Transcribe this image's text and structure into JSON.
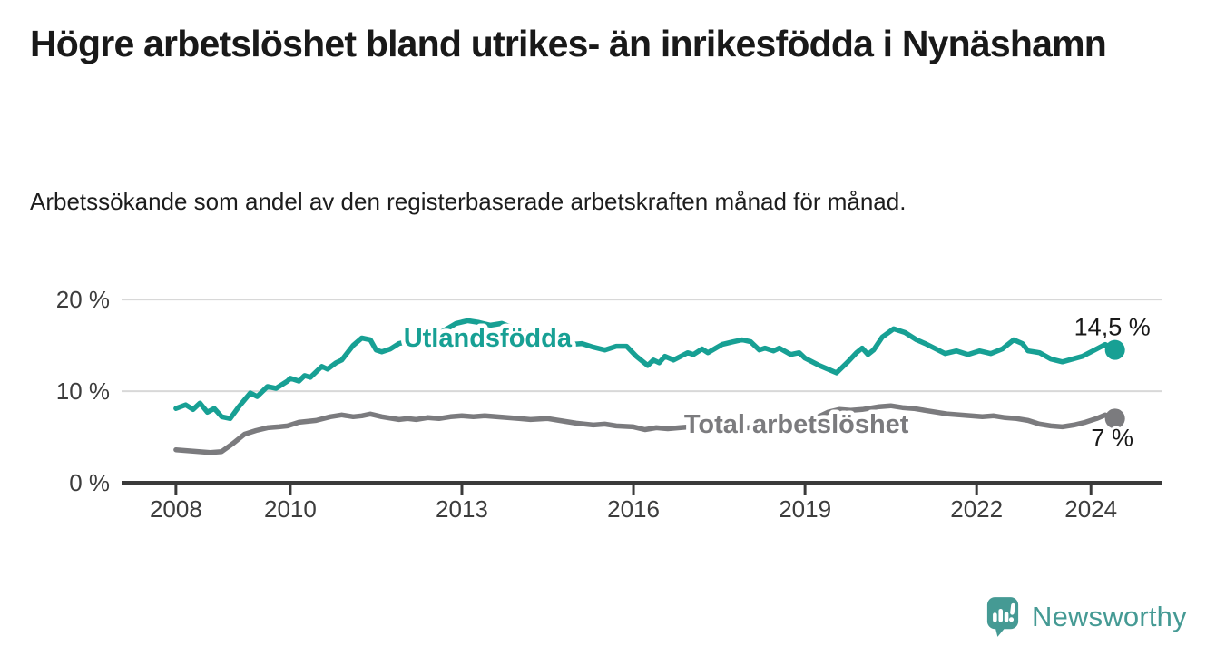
{
  "header": {
    "title": "Högre arbetslöshet bland utrikes- än inrikesfödda i Nynäshamn",
    "subtitle": "Arbetssökande som andel av den registerbaserade arbetskraften månad för månad."
  },
  "branding": {
    "name": "Newsworthy",
    "logo_color": "#459a94",
    "logo_icon": "bar-chart-speech-bubble"
  },
  "chart_data": {
    "type": "line",
    "unit": "%",
    "grid": "horizontal-only",
    "legend_position": "inline-labels",
    "xlim": [
      2007.05,
      2025.25
    ],
    "ylim": [
      0,
      21.5
    ],
    "x_ticks": [
      {
        "year": 2008,
        "label": "2008"
      },
      {
        "year": 2010,
        "label": "2010"
      },
      {
        "year": 2013,
        "label": "2013"
      },
      {
        "year": 2016,
        "label": "2016"
      },
      {
        "year": 2019,
        "label": "2019"
      },
      {
        "year": 2022,
        "label": "2022"
      },
      {
        "year": 2024,
        "label": "2024"
      }
    ],
    "y_ticks": [
      {
        "value": 0,
        "label": "0 %"
      },
      {
        "value": 10,
        "label": "10 %"
      },
      {
        "value": 20,
        "label": "20 %"
      }
    ],
    "series": [
      {
        "name": "Utlandsfödda",
        "color": "#17a094",
        "end_label": "14,5 %",
        "end_value": 14.5,
        "end_label_position": "above",
        "label_anchor": {
          "year": 2013.45,
          "value": 15.85
        },
        "points": [
          [
            2008.0,
            8.1
          ],
          [
            2008.17,
            8.5
          ],
          [
            2008.3,
            8.0
          ],
          [
            2008.42,
            8.7
          ],
          [
            2008.55,
            7.7
          ],
          [
            2008.67,
            8.1
          ],
          [
            2008.8,
            7.2
          ],
          [
            2008.95,
            7.0
          ],
          [
            2009.1,
            8.3
          ],
          [
            2009.3,
            9.8
          ],
          [
            2009.42,
            9.4
          ],
          [
            2009.6,
            10.5
          ],
          [
            2009.75,
            10.3
          ],
          [
            2009.95,
            11.1
          ],
          [
            2010.0,
            11.4
          ],
          [
            2010.15,
            11.1
          ],
          [
            2010.25,
            11.7
          ],
          [
            2010.35,
            11.5
          ],
          [
            2010.55,
            12.7
          ],
          [
            2010.65,
            12.4
          ],
          [
            2010.8,
            13.1
          ],
          [
            2010.9,
            13.4
          ],
          [
            2011.1,
            15.0
          ],
          [
            2011.25,
            15.8
          ],
          [
            2011.4,
            15.6
          ],
          [
            2011.5,
            14.5
          ],
          [
            2011.6,
            14.3
          ],
          [
            2011.75,
            14.6
          ],
          [
            2011.9,
            15.2
          ],
          [
            2012.05,
            15.4
          ],
          [
            2012.2,
            15.2
          ],
          [
            2012.4,
            15.6
          ],
          [
            2012.6,
            16.3
          ],
          [
            2012.9,
            17.4
          ],
          [
            2013.1,
            17.7
          ],
          [
            2013.3,
            17.5
          ],
          [
            2013.5,
            17.2
          ],
          [
            2013.7,
            17.4
          ],
          [
            2013.9,
            16.9
          ],
          [
            2014.1,
            16.4
          ],
          [
            2014.3,
            16.0
          ],
          [
            2014.6,
            15.5
          ],
          [
            2014.9,
            15.1
          ],
          [
            2015.1,
            15.2
          ],
          [
            2015.3,
            14.8
          ],
          [
            2015.5,
            14.5
          ],
          [
            2015.7,
            14.9
          ],
          [
            2015.88,
            14.9
          ],
          [
            2016.05,
            13.8
          ],
          [
            2016.25,
            12.8
          ],
          [
            2016.35,
            13.4
          ],
          [
            2016.45,
            13.1
          ],
          [
            2016.55,
            13.8
          ],
          [
            2016.7,
            13.4
          ],
          [
            2016.95,
            14.2
          ],
          [
            2017.05,
            14.0
          ],
          [
            2017.2,
            14.6
          ],
          [
            2017.3,
            14.2
          ],
          [
            2017.55,
            15.1
          ],
          [
            2017.75,
            15.4
          ],
          [
            2017.9,
            15.6
          ],
          [
            2018.05,
            15.4
          ],
          [
            2018.2,
            14.5
          ],
          [
            2018.3,
            14.7
          ],
          [
            2018.45,
            14.4
          ],
          [
            2018.55,
            14.7
          ],
          [
            2018.75,
            14.0
          ],
          [
            2018.9,
            14.2
          ],
          [
            2019.0,
            13.6
          ],
          [
            2019.25,
            12.8
          ],
          [
            2019.4,
            12.4
          ],
          [
            2019.55,
            12.0
          ],
          [
            2019.65,
            12.6
          ],
          [
            2019.75,
            13.2
          ],
          [
            2019.9,
            14.2
          ],
          [
            2020.0,
            14.7
          ],
          [
            2020.1,
            14.0
          ],
          [
            2020.2,
            14.5
          ],
          [
            2020.35,
            15.9
          ],
          [
            2020.55,
            16.8
          ],
          [
            2020.75,
            16.4
          ],
          [
            2020.95,
            15.6
          ],
          [
            2021.1,
            15.2
          ],
          [
            2021.45,
            14.1
          ],
          [
            2021.65,
            14.4
          ],
          [
            2021.85,
            14.0
          ],
          [
            2022.05,
            14.4
          ],
          [
            2022.25,
            14.1
          ],
          [
            2022.45,
            14.6
          ],
          [
            2022.65,
            15.6
          ],
          [
            2022.8,
            15.2
          ],
          [
            2022.9,
            14.4
          ],
          [
            2023.1,
            14.2
          ],
          [
            2023.3,
            13.5
          ],
          [
            2023.5,
            13.2
          ],
          [
            2023.85,
            13.8
          ],
          [
            2024.1,
            14.6
          ],
          [
            2024.25,
            15.1
          ],
          [
            2024.42,
            14.5
          ]
        ]
      },
      {
        "name": "Total arbetslöshet",
        "color": "#7b7b7e",
        "end_label": "7 %",
        "end_value": 7.0,
        "end_label_position": "below",
        "label_anchor": {
          "year": 2018.85,
          "value": 6.45
        },
        "points": [
          [
            2008.0,
            3.6
          ],
          [
            2008.2,
            3.5
          ],
          [
            2008.4,
            3.4
          ],
          [
            2008.6,
            3.3
          ],
          [
            2008.8,
            3.4
          ],
          [
            2009.0,
            4.3
          ],
          [
            2009.2,
            5.3
          ],
          [
            2009.4,
            5.7
          ],
          [
            2009.6,
            6.0
          ],
          [
            2009.8,
            6.1
          ],
          [
            2009.95,
            6.2
          ],
          [
            2010.15,
            6.6
          ],
          [
            2010.45,
            6.8
          ],
          [
            2010.7,
            7.2
          ],
          [
            2010.9,
            7.4
          ],
          [
            2011.1,
            7.2
          ],
          [
            2011.25,
            7.3
          ],
          [
            2011.4,
            7.5
          ],
          [
            2011.6,
            7.2
          ],
          [
            2011.9,
            6.9
          ],
          [
            2012.05,
            7.0
          ],
          [
            2012.2,
            6.9
          ],
          [
            2012.4,
            7.1
          ],
          [
            2012.6,
            7.0
          ],
          [
            2012.8,
            7.2
          ],
          [
            2013.0,
            7.3
          ],
          [
            2013.2,
            7.2
          ],
          [
            2013.4,
            7.3
          ],
          [
            2013.6,
            7.2
          ],
          [
            2013.8,
            7.1
          ],
          [
            2014.0,
            7.0
          ],
          [
            2014.2,
            6.9
          ],
          [
            2014.5,
            7.0
          ],
          [
            2014.8,
            6.7
          ],
          [
            2015.0,
            6.5
          ],
          [
            2015.3,
            6.3
          ],
          [
            2015.5,
            6.4
          ],
          [
            2015.7,
            6.2
          ],
          [
            2016.0,
            6.1
          ],
          [
            2016.2,
            5.8
          ],
          [
            2016.4,
            6.0
          ],
          [
            2016.6,
            5.9
          ],
          [
            2016.8,
            6.0
          ],
          [
            2017.0,
            6.1
          ],
          [
            2017.3,
            6.2
          ],
          [
            2017.6,
            6.1
          ],
          [
            2018.0,
            6.0
          ],
          [
            2018.4,
            6.1
          ],
          [
            2018.8,
            6.3
          ],
          [
            2019.1,
            6.8
          ],
          [
            2019.4,
            7.7
          ],
          [
            2019.6,
            8.0
          ],
          [
            2019.8,
            7.9
          ],
          [
            2020.0,
            8.0
          ],
          [
            2020.3,
            8.3
          ],
          [
            2020.5,
            8.4
          ],
          [
            2020.7,
            8.2
          ],
          [
            2020.9,
            8.1
          ],
          [
            2021.1,
            7.9
          ],
          [
            2021.3,
            7.7
          ],
          [
            2021.5,
            7.5
          ],
          [
            2021.7,
            7.4
          ],
          [
            2021.9,
            7.3
          ],
          [
            2022.1,
            7.2
          ],
          [
            2022.3,
            7.3
          ],
          [
            2022.5,
            7.1
          ],
          [
            2022.7,
            7.0
          ],
          [
            2022.9,
            6.8
          ],
          [
            2023.1,
            6.4
          ],
          [
            2023.3,
            6.2
          ],
          [
            2023.5,
            6.1
          ],
          [
            2023.7,
            6.3
          ],
          [
            2023.9,
            6.6
          ],
          [
            2024.1,
            7.0
          ],
          [
            2024.25,
            7.4
          ],
          [
            2024.42,
            7.0
          ]
        ]
      }
    ]
  }
}
